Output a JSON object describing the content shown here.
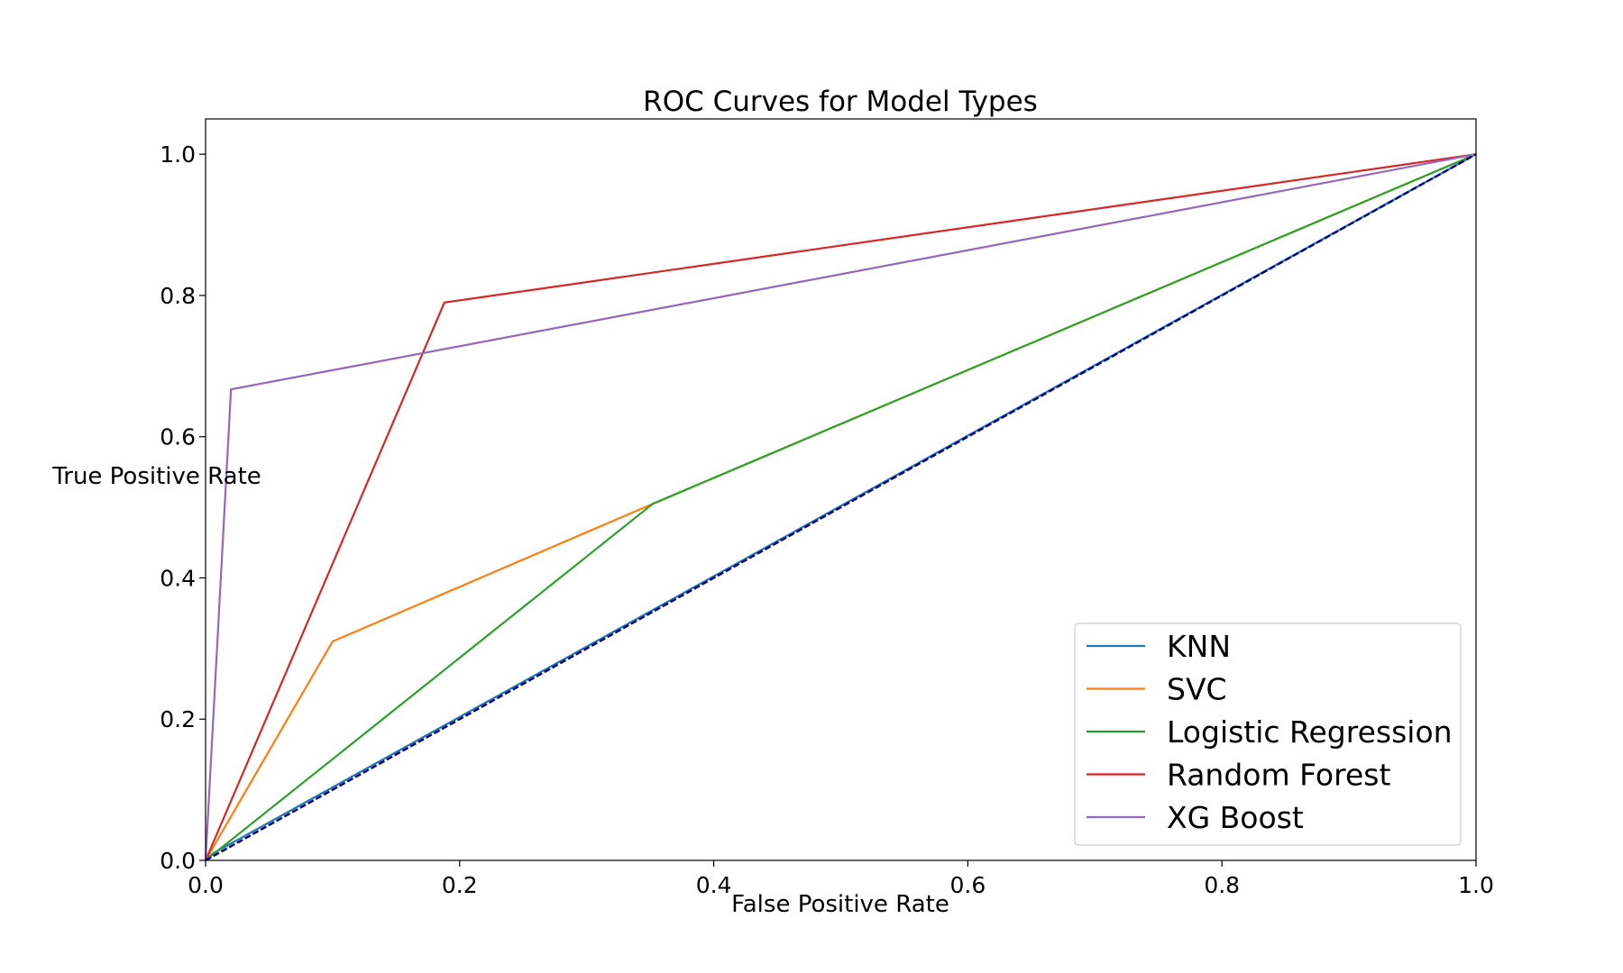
{
  "chart_data": {
    "type": "line",
    "title": "ROC Curves for Model Types",
    "xlabel": "False Positive Rate",
    "ylabel": "True Positive Rate",
    "xlim": [
      0.0,
      1.0
    ],
    "ylim": [
      0.0,
      1.05
    ],
    "xticks": [
      "0.0",
      "0.2",
      "0.4",
      "0.6",
      "0.8",
      "1.0"
    ],
    "yticks": [
      "0.0",
      "0.2",
      "0.4",
      "0.6",
      "0.8",
      "1.0"
    ],
    "grid": false,
    "legend_position": "lower-right",
    "series": [
      {
        "name": "KNN",
        "color": "#1f77b4",
        "x": [
          0.0,
          0.006,
          1.0
        ],
        "y": [
          0.0,
          0.01,
          1.0
        ]
      },
      {
        "name": "SVC",
        "color": "#ff7f0e",
        "x": [
          0.0,
          0.1,
          0.352,
          1.0
        ],
        "y": [
          0.0,
          0.31,
          0.505,
          1.0
        ]
      },
      {
        "name": "Logistic Regression",
        "color": "#2ca02c",
        "x": [
          0.0,
          0.352,
          1.0
        ],
        "y": [
          0.0,
          0.505,
          1.0
        ]
      },
      {
        "name": "Random Forest",
        "color": "#d62728",
        "x": [
          0.0,
          0.188,
          1.0
        ],
        "y": [
          0.0,
          0.79,
          1.0
        ]
      },
      {
        "name": "XG Boost",
        "color": "#9467bd",
        "x": [
          0.0,
          0.02,
          1.0
        ],
        "y": [
          0.0,
          0.667,
          1.0
        ]
      }
    ],
    "reference_line": {
      "color": "#000080",
      "style": "dashed",
      "x": [
        0.0,
        1.0
      ],
      "y": [
        0.0,
        1.0
      ]
    }
  }
}
